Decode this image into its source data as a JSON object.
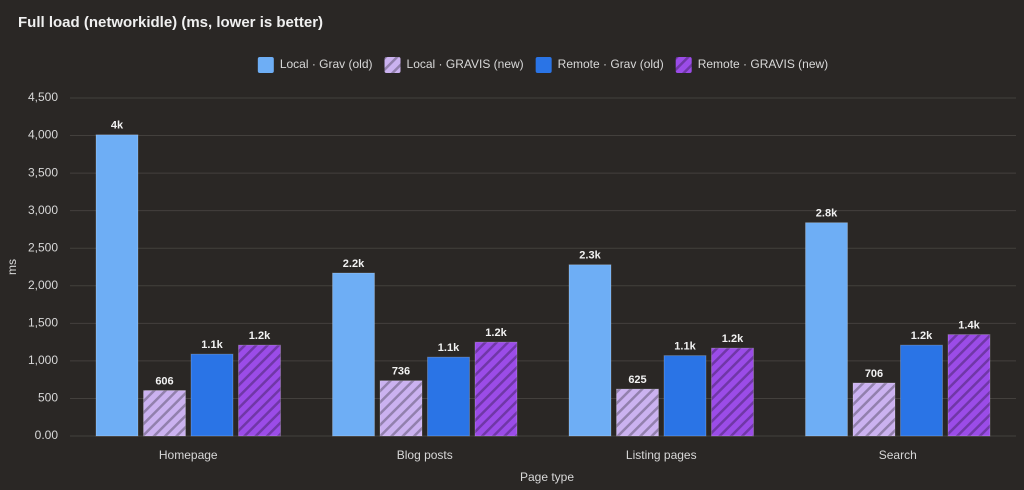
{
  "chart_data": {
    "type": "bar",
    "title": "Full load (networkidle) (ms, lower is better)",
    "x_label": "Page type",
    "y_label": "ms",
    "categories": [
      "Homepage",
      "Blog posts",
      "Listing pages",
      "Search"
    ],
    "series": [
      {
        "name": "Local · Grav (old)",
        "color": "#6eaef5",
        "hatched": false,
        "values": [
          4010,
          2170,
          2280,
          2840
        ],
        "value_labels": [
          "4k",
          "2.2k",
          "2.3k",
          "2.8k"
        ]
      },
      {
        "name": "Local · GRAVIS (new)",
        "color": "#cbb2f0",
        "hatched": true,
        "values": [
          606,
          736,
          625,
          706
        ],
        "value_labels": [
          "606",
          "736",
          "625",
          "706"
        ]
      },
      {
        "name": "Remote · Grav (old)",
        "color": "#2a74e6",
        "hatched": false,
        "values": [
          1090,
          1050,
          1070,
          1210
        ],
        "value_labels": [
          "1.1k",
          "1.1k",
          "1.1k",
          "1.2k"
        ]
      },
      {
        "name": "Remote · GRAVIS (new)",
        "color": "#9b4ce8",
        "hatched": true,
        "values": [
          1210,
          1250,
          1170,
          1350
        ],
        "value_labels": [
          "1.2k",
          "1.2k",
          "1.2k",
          "1.4k"
        ]
      }
    ],
    "ylim": [
      0,
      4500
    ],
    "yticks": [
      {
        "value": 0,
        "label": "0.00"
      },
      500,
      {
        "value": 1000,
        "label": "1,000"
      },
      {
        "value": 1500,
        "label": "1,500"
      },
      {
        "value": 2000,
        "label": "2,000"
      },
      {
        "value": 2500,
        "label": "2,500"
      },
      {
        "value": 3000,
        "label": "3,000"
      },
      {
        "value": 3500,
        "label": "3,500"
      },
      {
        "value": 4000,
        "label": "4,000"
      },
      {
        "value": 4500,
        "label": "4,500"
      }
    ],
    "grid": true,
    "legend": "top"
  }
}
